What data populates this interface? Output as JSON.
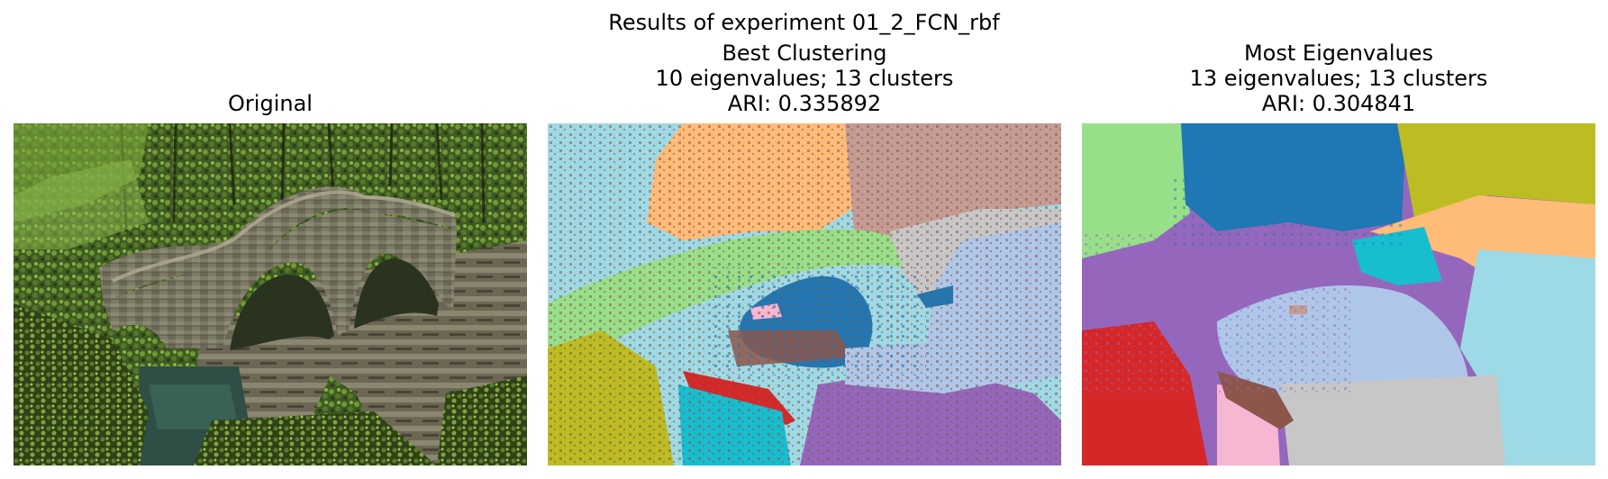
{
  "figure": {
    "title": "Results of experiment 01_2_FCN_rbf"
  },
  "panels": [
    {
      "id": "original",
      "title_lines": [
        "Original"
      ]
    },
    {
      "id": "best-clustering",
      "title_lines": [
        "Best Clustering",
        "10 eigenvalues; 13 clusters",
        "ARI: 0.335892"
      ]
    },
    {
      "id": "most-eigenvalues",
      "title_lines": [
        "Most Eigenvalues",
        "13 eigenvalues; 13 clusters",
        "ARI: 0.304841"
      ]
    }
  ],
  "cluster_palette": {
    "blue": "#1f77b4",
    "light_blue": "#aec7e8",
    "orange_light": "#ffbb78",
    "light_green": "#98df8a",
    "red": "#d62728",
    "purple": "#9467bd",
    "brown": "#8c564b",
    "tan_brown": "#c49c94",
    "pink": "#f7b6d2",
    "gray_light": "#c7c7c7",
    "olive": "#bcbd22",
    "cyan": "#17becf",
    "cyan_light": "#9edae5"
  }
}
